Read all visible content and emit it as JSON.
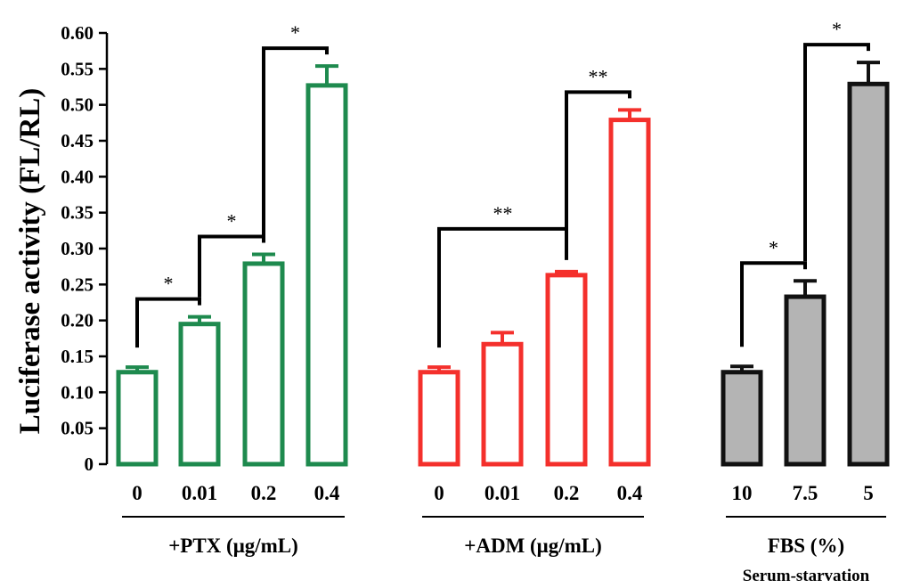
{
  "chart_data": {
    "type": "bar",
    "ylabel": "Luciferase activity (FL/RL)",
    "ylim": [
      0,
      0.6
    ],
    "yticks": [
      "0",
      "0.05",
      "0.10",
      "0.15",
      "0.20",
      "0.25",
      "0.30",
      "0.35",
      "0.40",
      "0.45",
      "0.50",
      "0.55",
      "0.60"
    ],
    "yticks_values": [
      0,
      0.05,
      0.1,
      0.15,
      0.2,
      0.25,
      0.3,
      0.35,
      0.4,
      0.45,
      0.5,
      0.55,
      0.6
    ],
    "groups": [
      {
        "label": "+PTX (μg/mL)",
        "sublabel": "",
        "color": "#1e8a4e",
        "style": "outline",
        "categories": [
          "0",
          "0.01",
          "0.2",
          "0.4"
        ],
        "values": [
          0.128,
          0.195,
          0.279,
          0.527
        ],
        "errors": [
          0.007,
          0.01,
          0.013,
          0.027
        ]
      },
      {
        "label": "+ADM (μg/mL)",
        "sublabel": "",
        "color": "#f4302c",
        "style": "outline",
        "categories": [
          "0",
          "0.01",
          "0.2",
          "0.4"
        ],
        "values": [
          0.128,
          0.167,
          0.263,
          0.479
        ],
        "errors": [
          0.007,
          0.016,
          0.005,
          0.014
        ]
      },
      {
        "label": "FBS (%)",
        "sublabel": "Serum-starvation",
        "color": "#111111",
        "fill": "#b4b4b4",
        "style": "filled",
        "categories": [
          "10",
          "7.5",
          "5"
        ],
        "values": [
          0.128,
          0.233,
          0.529
        ],
        "errors": [
          0.008,
          0.022,
          0.03
        ]
      }
    ],
    "significance": [
      {
        "group": 0,
        "from": 0,
        "to": 1,
        "label": "*"
      },
      {
        "group": 0,
        "from": 1,
        "to": 2,
        "label": "*"
      },
      {
        "group": 0,
        "from": 2,
        "to": 3,
        "label": "*"
      },
      {
        "group": 1,
        "from": 0,
        "to": 2,
        "label": "**"
      },
      {
        "group": 1,
        "from": 2,
        "to": 3,
        "label": "**"
      },
      {
        "group": 2,
        "from": 0,
        "to": 1,
        "label": "*"
      },
      {
        "group": 2,
        "from": 1,
        "to": 2,
        "label": "*"
      }
    ]
  }
}
